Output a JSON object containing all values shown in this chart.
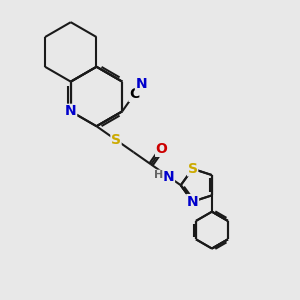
{
  "bg_color": "#e8e8e8",
  "bond_color": "#1a1a1a",
  "bond_width": 1.5,
  "atom_colors": {
    "N": "#0000cc",
    "S": "#ccaa00",
    "O": "#cc0000",
    "C": "#000000",
    "H": "#666666"
  },
  "font_size": 10,
  "font_size_small": 8,
  "figsize": [
    3.0,
    3.0
  ],
  "dpi": 100
}
